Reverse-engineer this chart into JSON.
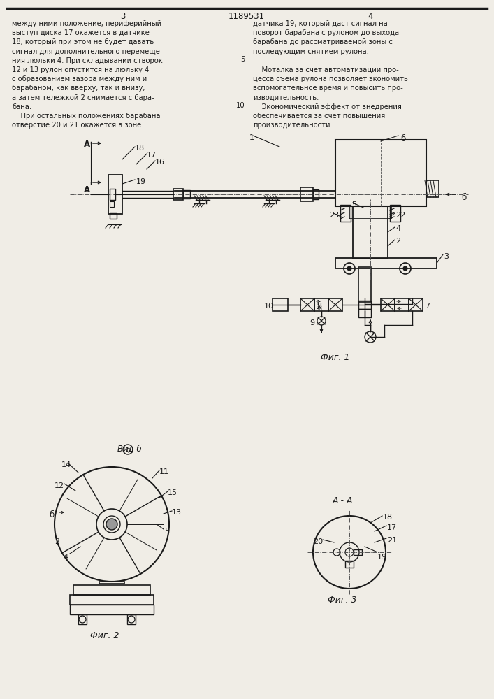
{
  "page_width": 7.07,
  "page_height": 10.0,
  "bg": "#f0ede6",
  "lc": "#1a1a1a",
  "tc": "#1a1a1a",
  "fs": 7.2,
  "left_text": [
    "между ними положение, периферийный",
    "выступ диска 17 окажется в датчике",
    "18, который при этом не будет давать",
    "сигнал для дополнительного перемеще-",
    "ния люльки 4. При складывании створок",
    "12 и 13 рулон опустится на люльку 4",
    "с образованием зазора между ним и",
    "барабаном, как вверху, так и внизу,",
    "а затем тележкой 2 снимается с бара-",
    "бана.",
    "    При остальных положениях барабана",
    "отверстие 20 и 21 окажется в зоне"
  ],
  "right_text": [
    "датчика 19, который даст сигнал на",
    "поворот барабана с рулоном до выхода",
    "барабана до рассматриваемой зоны с",
    "последующим снятием рулона.",
    "",
    "    Моталка за счет автоматизации про-",
    "цесса съема рулона позволяет экономить",
    "вспомогательное время и повысить про-",
    "изводительность.",
    "    Экономический эффект от внедрения",
    "обеспечивается за счет повышения",
    "производительности."
  ]
}
